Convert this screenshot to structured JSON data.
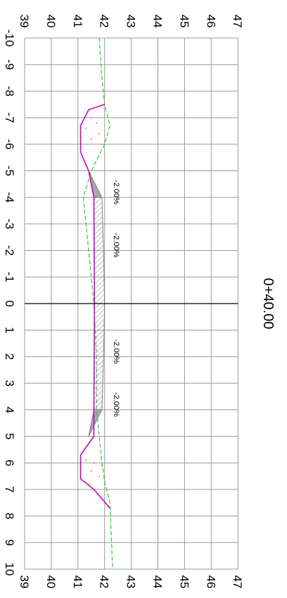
{
  "station_label": "0+40.00",
  "elevation_ticks": [
    "39",
    "40",
    "41",
    "42",
    "43",
    "44",
    "45",
    "46",
    "47"
  ],
  "offset_ticks": [
    "-10",
    "-9",
    "-8",
    "-7",
    "-6",
    "-5",
    "-4",
    "-3",
    "-2",
    "-1",
    "0",
    "1",
    "2",
    "3",
    "4",
    "5",
    "6",
    "7",
    "8",
    "9",
    "10"
  ],
  "slope_labels": [
    "-2.00%",
    "-2.00%",
    "-2.00%",
    "-2.00%"
  ],
  "colors": {
    "grid": "#9a9a9a",
    "centerline": "#000000",
    "design_ditch": "#cc00cc",
    "existing_ground": "#33cc33",
    "pavement_hatch": "#808080",
    "fill_dots": "#e04040"
  },
  "chart_data": {
    "type": "cross-section",
    "x_axis": "offset",
    "y_axis": "elevation",
    "offset_range": [
      -10,
      10
    ],
    "elevation_range": [
      39,
      47
    ],
    "grid": true,
    "pavement": {
      "edges_offset": [
        -4,
        4
      ],
      "top": [
        [
          -4,
          41.9
        ],
        [
          -2,
          41.96
        ],
        [
          0,
          42.0
        ],
        [
          2,
          41.96
        ],
        [
          4,
          41.9
        ]
      ],
      "bottom": [
        [
          -4,
          41.6
        ],
        [
          0,
          41.62
        ],
        [
          4,
          41.6
        ]
      ],
      "shoulder_left": [
        [
          -5,
          41.4
        ],
        [
          -4,
          41.9
        ]
      ],
      "shoulder_right": [
        [
          5,
          41.4
        ],
        [
          4,
          41.9
        ]
      ]
    },
    "design_ditch_left": [
      [
        -4,
        41.6
      ],
      [
        -5,
        41.4
      ],
      [
        -5.7,
        41.1
      ],
      [
        -6.7,
        41.1
      ],
      [
        -7.3,
        41.4
      ],
      [
        -7.5,
        42.0
      ]
    ],
    "design_ditch_right": [
      [
        4,
        41.6
      ],
      [
        5,
        41.6
      ],
      [
        5.7,
        41.1
      ],
      [
        6.6,
        41.1
      ],
      [
        7.0,
        41.6
      ],
      [
        7.7,
        42.2
      ]
    ],
    "existing_ground": [
      [
        -10,
        41.8
      ],
      [
        -8.5,
        41.9
      ],
      [
        -7.5,
        42.0
      ],
      [
        -6.7,
        42.2
      ],
      [
        -6.0,
        42.0
      ],
      [
        -5.0,
        41.5
      ],
      [
        -4.0,
        41.2
      ],
      [
        -2.0,
        41.4
      ],
      [
        -1.0,
        41.5
      ],
      [
        0.0,
        41.6
      ],
      [
        2.0,
        41.7
      ],
      [
        4.0,
        41.7
      ],
      [
        5.0,
        41.8
      ],
      [
        6.0,
        41.9
      ],
      [
        6.7,
        42.0
      ],
      [
        7.5,
        42.2
      ],
      [
        10.0,
        42.3
      ]
    ],
    "slope_annotations": [
      {
        "offset": -4.2,
        "text": "-2.00%"
      },
      {
        "offset": -2.2,
        "text": "-2.00%"
      },
      {
        "offset": 1.8,
        "text": "-2.00%"
      },
      {
        "offset": 3.8,
        "text": "-2.00%"
      }
    ]
  }
}
